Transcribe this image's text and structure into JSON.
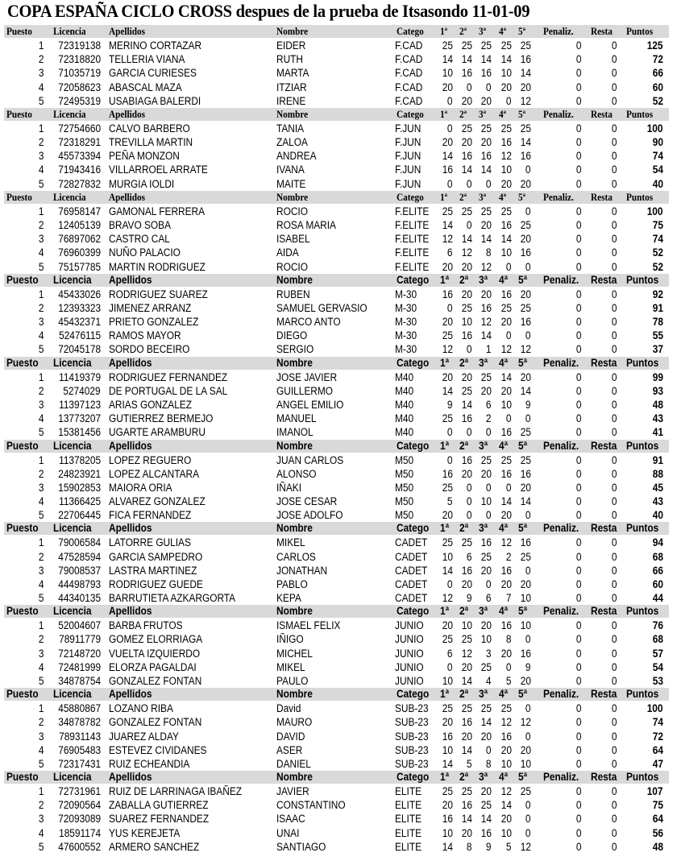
{
  "title": "COPA ESPAÑA CICLO CROSS despues de la prueba de Itsasondo 11-01-09",
  "columns": [
    "Puesto",
    "Licencia",
    "Apellidos",
    "Nombre",
    "Catego",
    "1ª",
    "2ª",
    "3ª",
    "4ª",
    "5ª",
    "Penaliz.",
    "Resta",
    "Puntos"
  ],
  "header_fill": "#d9d9d9",
  "sections": [
    {
      "rows": [
        [
          "1",
          "72319138",
          "MERINO CORTAZAR",
          "EIDER",
          "F.CAD",
          "25",
          "25",
          "25",
          "25",
          "25",
          "0",
          "0",
          "125"
        ],
        [
          "2",
          "72318820",
          "TELLERIA VIANA",
          "RUTH",
          "F.CAD",
          "14",
          "14",
          "14",
          "14",
          "16",
          "0",
          "0",
          "72"
        ],
        [
          "3",
          "71035719",
          "GARCIA CURIESES",
          "MARTA",
          "F.CAD",
          "10",
          "16",
          "16",
          "10",
          "14",
          "0",
          "0",
          "66"
        ],
        [
          "4",
          "72058623",
          "ABASCAL MAZA",
          "ITZIAR",
          "F.CAD",
          "20",
          "0",
          "0",
          "20",
          "20",
          "0",
          "0",
          "60"
        ],
        [
          "5",
          "72495319",
          "USABIAGA BALERDI",
          "IRENE",
          "F.CAD",
          "0",
          "20",
          "20",
          "0",
          "12",
          "0",
          "0",
          "52"
        ]
      ]
    },
    {
      "rows": [
        [
          "1",
          "72754660",
          "CALVO BARBERO",
          "TANIA",
          "F.JUN",
          "0",
          "25",
          "25",
          "25",
          "25",
          "0",
          "0",
          "100"
        ],
        [
          "2",
          "72318291",
          "TREVILLA MARTIN",
          "ZALOA",
          "F.JUN",
          "20",
          "20",
          "20",
          "16",
          "14",
          "0",
          "0",
          "90"
        ],
        [
          "3",
          "45573394",
          "PEÑA MONZON",
          "ANDREA",
          "F.JUN",
          "14",
          "16",
          "16",
          "12",
          "16",
          "0",
          "0",
          "74"
        ],
        [
          "4",
          "71943416",
          "VILLARROEL ARRATE",
          "IVANA",
          "F.JUN",
          "16",
          "14",
          "14",
          "10",
          "0",
          "0",
          "0",
          "54"
        ],
        [
          "5",
          "72827832",
          "MURGIA IOLDI",
          "MAITE",
          "F.JUN",
          "0",
          "0",
          "0",
          "20",
          "20",
          "0",
          "0",
          "40"
        ]
      ]
    },
    {
      "rows": [
        [
          "1",
          "76958147",
          "GAMONAL FERRERA",
          "ROCIO",
          "F.ELITE",
          "25",
          "25",
          "25",
          "25",
          "0",
          "0",
          "0",
          "100"
        ],
        [
          "2",
          "12405139",
          "BRAVO SOBA",
          "ROSA MARIA",
          "F.ELITE",
          "14",
          "0",
          "20",
          "16",
          "25",
          "0",
          "0",
          "75"
        ],
        [
          "3",
          "76897062",
          "CASTRO CAL",
          "ISABEL",
          "F.ELITE",
          "12",
          "14",
          "14",
          "14",
          "20",
          "0",
          "0",
          "74"
        ],
        [
          "4",
          "76960399",
          "NUÑO PALACIO",
          "AIDA",
          "F.ELITE",
          "6",
          "12",
          "8",
          "10",
          "16",
          "0",
          "0",
          "52"
        ],
        [
          "5",
          "75157785",
          "MARTIN RODRIGUEZ",
          "ROCIO",
          "F.ELITE",
          "20",
          "20",
          "12",
          "0",
          "0",
          "0",
          "0",
          "52"
        ]
      ]
    },
    {
      "rows": [
        [
          "1",
          "45433026",
          "RODRIGUEZ SUAREZ",
          "RUBEN",
          "M-30",
          "16",
          "20",
          "20",
          "16",
          "20",
          "0",
          "0",
          "92"
        ],
        [
          "2",
          "12393323",
          "JIMENEZ ARRANZ",
          "SAMUEL GERVASIO",
          "M-30",
          "0",
          "25",
          "16",
          "25",
          "25",
          "0",
          "0",
          "91"
        ],
        [
          "3",
          "45432371",
          "PRIETO GONZALEZ",
          "MARCO ANTO",
          "M-30",
          "20",
          "10",
          "12",
          "20",
          "16",
          "0",
          "0",
          "78"
        ],
        [
          "4",
          "52476115",
          "RAMOS MAYOR",
          "DIEGO",
          "M-30",
          "25",
          "16",
          "14",
          "0",
          "0",
          "0",
          "0",
          "55"
        ],
        [
          "5",
          "72045178",
          "SORDO BECEIRO",
          "SERGIO",
          "M-30",
          "12",
          "0",
          "1",
          "12",
          "12",
          "0",
          "0",
          "37"
        ]
      ]
    },
    {
      "rows": [
        [
          "1",
          "11419379",
          "RODRIGUEZ FERNANDEZ",
          "JOSE JAVIER",
          "M40",
          "20",
          "20",
          "25",
          "14",
          "20",
          "0",
          "0",
          "99"
        ],
        [
          "2",
          "5274029",
          "DE PORTUGAL DE LA SAL",
          "GUILLERMO",
          "M40",
          "14",
          "25",
          "20",
          "20",
          "14",
          "0",
          "0",
          "93"
        ],
        [
          "3",
          "11397123",
          "ARIAS GONZALEZ",
          "ANGEL EMILIO",
          "M40",
          "9",
          "14",
          "6",
          "10",
          "9",
          "0",
          "0",
          "48"
        ],
        [
          "4",
          "13773207",
          "GUTIERREZ BERMEJO",
          "MANUEL",
          "M40",
          "25",
          "16",
          "2",
          "0",
          "0",
          "0",
          "0",
          "43"
        ],
        [
          "5",
          "15381456",
          "UGARTE ARAMBURU",
          "IMANOL",
          "M40",
          "0",
          "0",
          "0",
          "16",
          "25",
          "0",
          "0",
          "41"
        ]
      ]
    },
    {
      "rows": [
        [
          "1",
          "11378205",
          "LOPEZ REGUERO",
          "JUAN CARLOS",
          "M50",
          "0",
          "16",
          "25",
          "25",
          "25",
          "0",
          "0",
          "91"
        ],
        [
          "2",
          "24823921",
          "LOPEZ ALCANTARA",
          "ALONSO",
          "M50",
          "16",
          "20",
          "20",
          "16",
          "16",
          "0",
          "0",
          "88"
        ],
        [
          "3",
          "15902853",
          "MAIORA ORIA",
          "IÑAKI",
          "M50",
          "25",
          "0",
          "0",
          "0",
          "20",
          "0",
          "0",
          "45"
        ],
        [
          "4",
          "11366425",
          "ALVAREZ GONZALEZ",
          "JOSE CESAR",
          "M50",
          "5",
          "0",
          "10",
          "14",
          "14",
          "0",
          "0",
          "43"
        ],
        [
          "5",
          "22706445",
          "FICA FERNANDEZ",
          "JOSE ADOLFO",
          "M50",
          "20",
          "0",
          "0",
          "20",
          "0",
          "0",
          "0",
          "40"
        ]
      ]
    },
    {
      "rows": [
        [
          "1",
          "79006584",
          "LATORRE GULIAS",
          "MIKEL",
          "CADET",
          "25",
          "25",
          "16",
          "12",
          "16",
          "0",
          "0",
          "94"
        ],
        [
          "2",
          "47528594",
          "GARCIA SAMPEDRO",
          "CARLOS",
          "CADET",
          "10",
          "6",
          "25",
          "2",
          "25",
          "0",
          "0",
          "68"
        ],
        [
          "3",
          "79008537",
          "LASTRA MARTINEZ",
          "JONATHAN",
          "CADET",
          "14",
          "16",
          "20",
          "16",
          "0",
          "0",
          "0",
          "66"
        ],
        [
          "4",
          "44498793",
          "RODRIGUEZ GUEDE",
          "PABLO",
          "CADET",
          "0",
          "20",
          "0",
          "20",
          "20",
          "0",
          "0",
          "60"
        ],
        [
          "5",
          "44340135",
          "BARRUTIETA AZKARGORTA",
          "KEPA",
          "CADET",
          "12",
          "9",
          "6",
          "7",
          "10",
          "0",
          "0",
          "44"
        ]
      ]
    },
    {
      "rows": [
        [
          "1",
          "52004607",
          "BARBA FRUTOS",
          "ISMAEL FELIX",
          "JUNIO",
          "20",
          "10",
          "20",
          "16",
          "10",
          "0",
          "0",
          "76"
        ],
        [
          "2",
          "78911779",
          "GOMEZ ELORRIAGA",
          "IÑIGO",
          "JUNIO",
          "25",
          "25",
          "10",
          "8",
          "0",
          "0",
          "0",
          "68"
        ],
        [
          "3",
          "72148720",
          "VUELTA IZQUIERDO",
          "MICHEL",
          "JUNIO",
          "6",
          "12",
          "3",
          "20",
          "16",
          "0",
          "0",
          "57"
        ],
        [
          "4",
          "72481999",
          "ELORZA PAGALDAI",
          "MIKEL",
          "JUNIO",
          "0",
          "20",
          "25",
          "0",
          "9",
          "0",
          "0",
          "54"
        ],
        [
          "5",
          "34878754",
          "GONZALEZ FONTAN",
          "PAULO",
          "JUNIO",
          "10",
          "14",
          "4",
          "5",
          "20",
          "0",
          "0",
          "53"
        ]
      ]
    },
    {
      "rows": [
        [
          "1",
          "45880867",
          "LOZANO RIBA",
          "David",
          "SUB-23",
          "25",
          "25",
          "25",
          "25",
          "0",
          "0",
          "0",
          "100"
        ],
        [
          "2",
          "34878782",
          "GONZALEZ FONTAN",
          "MAURO",
          "SUB-23",
          "20",
          "16",
          "14",
          "12",
          "12",
          "0",
          "0",
          "74"
        ],
        [
          "3",
          "78931143",
          "JUAREZ ALDAY",
          "DAVID",
          "SUB-23",
          "16",
          "20",
          "20",
          "16",
          "0",
          "0",
          "0",
          "72"
        ],
        [
          "4",
          "76905483",
          "ESTEVEZ CIVIDANES",
          "ASER",
          "SUB-23",
          "10",
          "14",
          "0",
          "20",
          "20",
          "0",
          "0",
          "64"
        ],
        [
          "5",
          "72317431",
          "RUIZ ECHEANDIA",
          "DANIEL",
          "SUB-23",
          "14",
          "5",
          "8",
          "10",
          "10",
          "0",
          "0",
          "47"
        ]
      ]
    },
    {
      "rows": [
        [
          "1",
          "72731961",
          "RUIZ DE LARRINAGA IBAÑEZ",
          "JAVIER",
          "ELITE",
          "25",
          "25",
          "20",
          "12",
          "25",
          "0",
          "0",
          "107"
        ],
        [
          "2",
          "72090564",
          "ZABALLA GUTIERREZ",
          "CONSTANTINO",
          "ELITE",
          "20",
          "16",
          "25",
          "14",
          "0",
          "0",
          "0",
          "75"
        ],
        [
          "3",
          "72093089",
          "SUAREZ FERNANDEZ",
          "ISAAC",
          "ELITE",
          "16",
          "14",
          "14",
          "20",
          "0",
          "0",
          "0",
          "64"
        ],
        [
          "4",
          "18591174",
          "YUS KEREJETA",
          "UNAI",
          "ELITE",
          "10",
          "20",
          "16",
          "10",
          "0",
          "0",
          "0",
          "56"
        ],
        [
          "5",
          "47600552",
          "ARMERO SANCHEZ",
          "SANTIAGO",
          "ELITE",
          "14",
          "8",
          "9",
          "5",
          "12",
          "0",
          "0",
          "48"
        ]
      ]
    }
  ]
}
